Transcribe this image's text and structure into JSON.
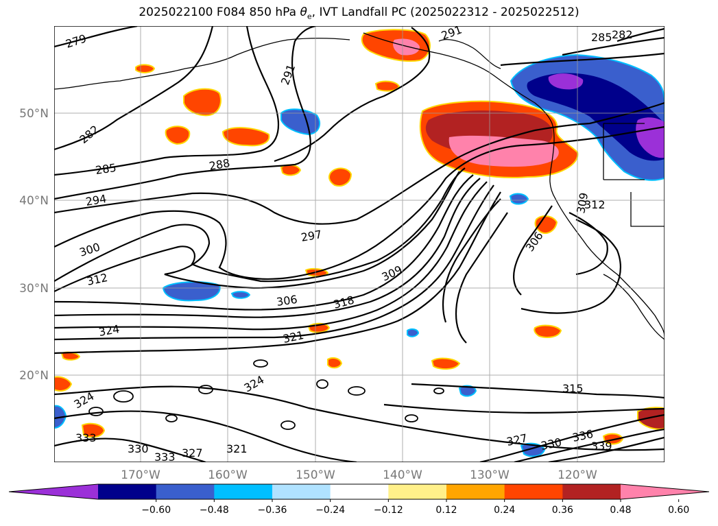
{
  "title": {
    "prefix": "2025022100 F084 850 hPa ",
    "symbol": "θ",
    "subscript": "e",
    "suffix": ", IVT Landfall PC (2025022312 - 2025022512)"
  },
  "lat_labels": [
    "50°N",
    "40°N",
    "30°N",
    "20°N"
  ],
  "lon_labels": [
    "170°W",
    "160°W",
    "150°W",
    "140°W",
    "130°W",
    "120°W"
  ],
  "contour_labels": [
    "279",
    "282",
    "285",
    "288",
    "291",
    "294",
    "297",
    "300",
    "306",
    "309",
    "312",
    "315",
    "318",
    "321",
    "324",
    "327",
    "330",
    "333",
    "336",
    "339"
  ],
  "colorbar": {
    "ticks": [
      "−0.60",
      "−0.48",
      "−0.36",
      "−0.24",
      "−0.12",
      "0.12",
      "0.24",
      "0.36",
      "0.48",
      "0.60"
    ],
    "colors": [
      "#9b30d8",
      "#00008b",
      "#3a5fcd",
      "#00bfff",
      "#b0e2ff",
      "#ffffff",
      "#fff08a",
      "#ffa500",
      "#ff4500",
      "#b22222",
      "#ff82ab"
    ]
  }
}
